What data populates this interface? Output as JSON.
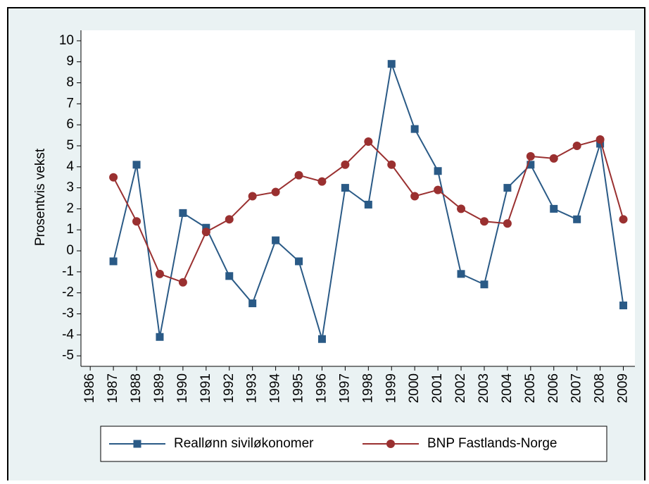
{
  "chart_data": {
    "type": "line",
    "y_label": "Prosentvis vekst",
    "x": [
      1987,
      1988,
      1989,
      1990,
      1991,
      1992,
      1993,
      1994,
      1995,
      1996,
      1997,
      1998,
      1999,
      2000,
      2001,
      2002,
      2003,
      2004,
      2005,
      2006,
      2007,
      2008,
      2009
    ],
    "series": [
      {
        "name": "Reallønn siviløkonomer",
        "color": "#2a5a86",
        "marker": "square",
        "values": [
          -0.5,
          4.1,
          -4.1,
          1.8,
          1.1,
          -1.2,
          -2.5,
          0.5,
          -0.5,
          -4.2,
          3.0,
          2.2,
          8.9,
          5.8,
          3.8,
          -1.1,
          -1.6,
          3.0,
          4.1,
          2.0,
          1.5,
          5.1,
          -2.6
        ]
      },
      {
        "name": "BNP Fastlands-Norge",
        "color": "#9a3030",
        "marker": "circle",
        "values": [
          3.5,
          1.4,
          -1.1,
          -1.5,
          0.9,
          1.5,
          2.6,
          2.8,
          3.6,
          3.3,
          4.1,
          5.2,
          4.1,
          2.6,
          2.9,
          2.0,
          1.4,
          1.3,
          4.5,
          4.4,
          5.0,
          5.3,
          1.5
        ]
      }
    ],
    "xlim": [
      1985.6,
      2009.5
    ],
    "xticks": [
      1986,
      1987,
      1988,
      1989,
      1990,
      1991,
      1992,
      1993,
      1994,
      1995,
      1996,
      1997,
      1998,
      1999,
      2000,
      2001,
      2002,
      2003,
      2004,
      2005,
      2006,
      2007,
      2008,
      2009
    ],
    "ylim": [
      -5.5,
      10.5
    ],
    "yticks": [
      -5,
      -4,
      -3,
      -2,
      -1,
      0,
      1,
      2,
      3,
      4,
      5,
      6,
      7,
      8,
      9,
      10
    ],
    "grid": false,
    "legend": "bottom"
  }
}
